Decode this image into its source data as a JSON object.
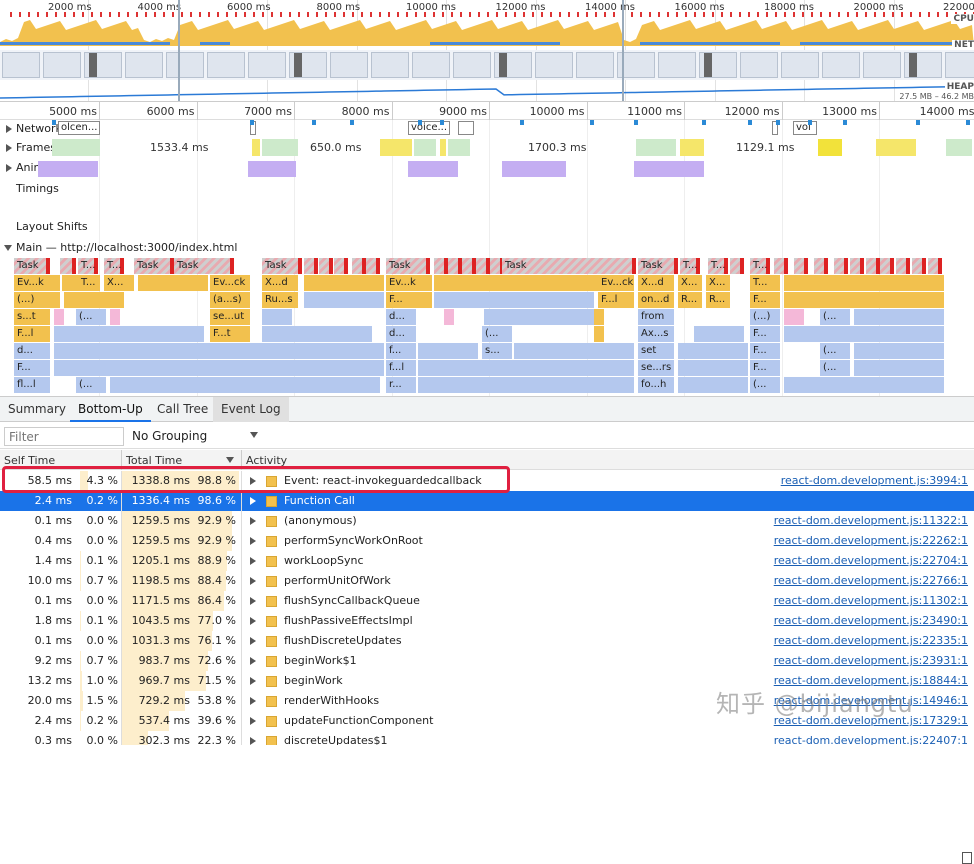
{
  "overview": {
    "ticks": [
      "2000 ms",
      "4000 ms",
      "6000 ms",
      "8000 ms",
      "10000 ms",
      "12000 ms",
      "14000 ms",
      "16000 ms",
      "18000 ms",
      "20000 ms",
      "22000 ms"
    ],
    "side_labels": {
      "cpu": "CPU",
      "net": "NET",
      "heap": "HEAP"
    },
    "heap_range": "27.5 MB – 46.2 MB"
  },
  "ruler": {
    "ticks": [
      "5000 ms",
      "6000 ms",
      "7000 ms",
      "8000 ms",
      "9000 ms",
      "10000 ms",
      "11000 ms",
      "12000 ms",
      "13000 ms",
      "14000 ms"
    ]
  },
  "tracks": {
    "network": "Network",
    "network_blocks": [
      "olcen...",
      "voice...",
      "vol"
    ],
    "frames": "Frames",
    "frame_times": [
      "1533.4 ms",
      "650.0 ms",
      "1700.3 ms",
      "1129.1 ms"
    ],
    "animation": "Animation",
    "timings": "Timings",
    "layout_shifts": "Layout Shifts",
    "main": "Main — http://localhost:3000/index.html"
  },
  "flame": {
    "task_label": "Task",
    "task_short": "T...",
    "row2": [
      "Ev...k",
      "T...",
      "X...",
      "Ev...ck",
      "X...d",
      "Ev...k",
      "Ev...ck",
      "X...d",
      "X...",
      "X...",
      "T..."
    ],
    "row3": [
      "(...)",
      "(a...s)",
      "Ru...s",
      "F...",
      "F...l",
      "on...d",
      "R...",
      "R...",
      "F..."
    ],
    "row4": [
      "s...t",
      "(...",
      "se...ut",
      "d...",
      "from",
      "(...)",
      "(..."
    ],
    "row5": [
      "F...l",
      "F...t",
      "d...",
      "(...",
      "Ax...s",
      "F..."
    ],
    "row6": [
      "d...",
      "f...",
      "s...",
      "set",
      "F...",
      "(..."
    ],
    "row7": [
      "F...",
      "f...l",
      "se...rs",
      "F...",
      "(..."
    ],
    "row8": [
      "fl...l",
      "(...",
      "r...",
      "fo...h",
      "(..."
    ]
  },
  "tabs": [
    "Summary",
    "Bottom-Up",
    "Call Tree",
    "Event Log"
  ],
  "toolbar": {
    "filter_placeholder": "Filter",
    "grouping": "No Grouping"
  },
  "table": {
    "headers": {
      "self": "Self Time",
      "total": "Total Time",
      "activity": "Activity"
    },
    "rows": [
      {
        "self_ms": "58.5 ms",
        "self_pct": "4.3 %",
        "tot_ms": "1338.8 ms",
        "tot_pct": "98.8 %",
        "name": "Event: react-invokeguardedcallback",
        "link": "react-dom.development.js:3994:1",
        "self_frac": 0.043,
        "tot_frac": 0.988
      },
      {
        "self_ms": "2.4 ms",
        "self_pct": "0.2 %",
        "tot_ms": "1336.4 ms",
        "tot_pct": "98.6 %",
        "name": "Function Call",
        "link": "",
        "self_frac": 0.002,
        "tot_frac": 0.986
      },
      {
        "self_ms": "0.1 ms",
        "self_pct": "0.0 %",
        "tot_ms": "1259.5 ms",
        "tot_pct": "92.9 %",
        "name": "(anonymous)",
        "link": "react-dom.development.js:11322:1",
        "self_frac": 0.0,
        "tot_frac": 0.929
      },
      {
        "self_ms": "0.4 ms",
        "self_pct": "0.0 %",
        "tot_ms": "1259.5 ms",
        "tot_pct": "92.9 %",
        "name": "performSyncWorkOnRoot",
        "link": "react-dom.development.js:22262:1",
        "self_frac": 0.0,
        "tot_frac": 0.929
      },
      {
        "self_ms": "1.4 ms",
        "self_pct": "0.1 %",
        "tot_ms": "1205.1 ms",
        "tot_pct": "88.9 %",
        "name": "workLoopSync",
        "link": "react-dom.development.js:22704:1",
        "self_frac": 0.001,
        "tot_frac": 0.889
      },
      {
        "self_ms": "10.0 ms",
        "self_pct": "0.7 %",
        "tot_ms": "1198.5 ms",
        "tot_pct": "88.4 %",
        "name": "performUnitOfWork",
        "link": "react-dom.development.js:22766:1",
        "self_frac": 0.007,
        "tot_frac": 0.884
      },
      {
        "self_ms": "0.1 ms",
        "self_pct": "0.0 %",
        "tot_ms": "1171.5 ms",
        "tot_pct": "86.4 %",
        "name": "flushSyncCallbackQueue",
        "link": "react-dom.development.js:11302:1",
        "self_frac": 0.0,
        "tot_frac": 0.864
      },
      {
        "self_ms": "1.8 ms",
        "self_pct": "0.1 %",
        "tot_ms": "1043.5 ms",
        "tot_pct": "77.0 %",
        "name": "flushPassiveEffectsImpl",
        "link": "react-dom.development.js:23490:1",
        "self_frac": 0.001,
        "tot_frac": 0.77
      },
      {
        "self_ms": "0.1 ms",
        "self_pct": "0.0 %",
        "tot_ms": "1031.3 ms",
        "tot_pct": "76.1 %",
        "name": "flushDiscreteUpdates",
        "link": "react-dom.development.js:22335:1",
        "self_frac": 0.0,
        "tot_frac": 0.761
      },
      {
        "self_ms": "9.2 ms",
        "self_pct": "0.7 %",
        "tot_ms": "983.7 ms",
        "tot_pct": "72.6 %",
        "name": "beginWork$1",
        "link": "react-dom.development.js:23931:1",
        "self_frac": 0.007,
        "tot_frac": 0.726
      },
      {
        "self_ms": "13.2 ms",
        "self_pct": "1.0 %",
        "tot_ms": "969.7 ms",
        "tot_pct": "71.5 %",
        "name": "beginWork",
        "link": "react-dom.development.js:18844:1",
        "self_frac": 0.01,
        "tot_frac": 0.715
      },
      {
        "self_ms": "20.0 ms",
        "self_pct": "1.5 %",
        "tot_ms": "729.2 ms",
        "tot_pct": "53.8 %",
        "name": "renderWithHooks",
        "link": "react-dom.development.js:14946:1",
        "self_frac": 0.015,
        "tot_frac": 0.538
      },
      {
        "self_ms": "2.4 ms",
        "self_pct": "0.2 %",
        "tot_ms": "537.4 ms",
        "tot_pct": "39.6 %",
        "name": "updateFunctionComponent",
        "link": "react-dom.development.js:17329:1",
        "self_frac": 0.002,
        "tot_frac": 0.396
      },
      {
        "self_ms": "0.3 ms",
        "self_pct": "0.0 %",
        "tot_ms": "302.3 ms",
        "tot_pct": "22.3 %",
        "name": "discreteUpdates$1",
        "link": "react-dom.development.js:22407:1",
        "self_frac": 0.0,
        "tot_frac": 0.223
      }
    ]
  },
  "watermark": "知乎 @bijiangtu",
  "colors": {
    "selected_row": "#1a73e8",
    "highlight": "#e02040",
    "event": "#f2c14e",
    "function": "#b4c8ee"
  }
}
